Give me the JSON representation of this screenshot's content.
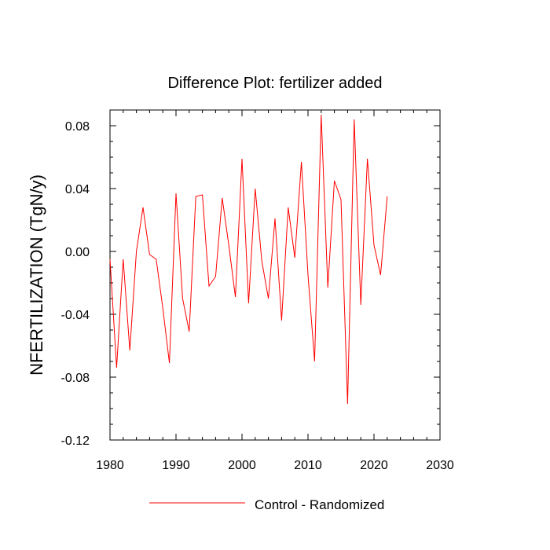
{
  "chart_data": {
    "type": "line",
    "title": "Difference Plot: fertilizer added",
    "xlabel": "",
    "ylabel": "NFERTILIZATION  (TgN/y)",
    "xlim": [
      1980,
      2030
    ],
    "ylim": [
      -0.12,
      0.09
    ],
    "xticks": [
      1980,
      1990,
      2000,
      2010,
      2020,
      2030
    ],
    "xtick_labels": [
      "1980",
      "1990",
      "2000",
      "2010",
      "2020",
      "2030"
    ],
    "yticks": [
      -0.12,
      -0.08,
      -0.04,
      0.0,
      0.04,
      0.08
    ],
    "ytick_labels": [
      "-0.12",
      "-0.08",
      "-0.04",
      "0.00",
      "0.04",
      "0.08"
    ],
    "grid": false,
    "legend_position": "bottom-center",
    "series": [
      {
        "name": "Control - Randomized",
        "color": "#ff0000",
        "x": [
          1980,
          1981,
          1982,
          1983,
          1984,
          1985,
          1986,
          1987,
          1988,
          1989,
          1990,
          1991,
          1992,
          1993,
          1994,
          1995,
          1996,
          1997,
          1998,
          1999,
          2000,
          2001,
          2002,
          2003,
          2004,
          2005,
          2006,
          2007,
          2008,
          2009,
          2010,
          2011,
          2012,
          2013,
          2014,
          2015,
          2016,
          2017,
          2018,
          2019,
          2020,
          2021,
          2022
        ],
        "values": [
          -0.005,
          -0.074,
          -0.005,
          -0.063,
          0.0,
          0.028,
          -0.002,
          -0.005,
          -0.036,
          -0.071,
          0.037,
          -0.03,
          -0.051,
          0.035,
          0.036,
          -0.022,
          -0.016,
          0.034,
          0.004,
          -0.029,
          0.059,
          -0.033,
          0.04,
          -0.006,
          -0.03,
          0.021,
          -0.044,
          0.028,
          -0.004,
          0.057,
          -0.015,
          -0.07,
          0.087,
          -0.023,
          0.045,
          0.033,
          -0.097,
          0.084,
          -0.034,
          0.059,
          0.004,
          -0.015,
          0.035
        ]
      }
    ]
  }
}
